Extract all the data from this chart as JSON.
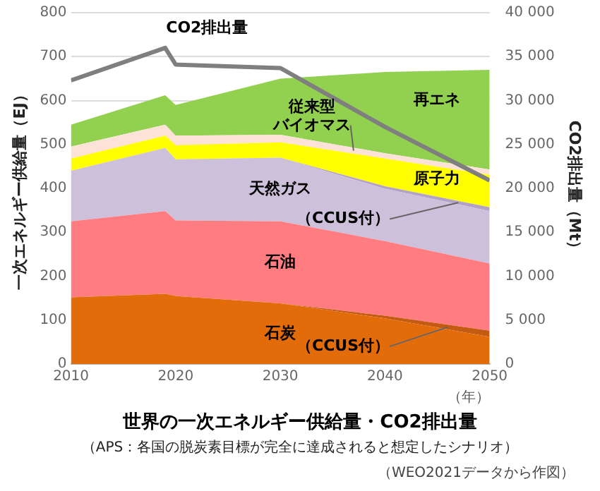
{
  "chart_data": {
    "type": "area",
    "title": "世界の一次エネルギー供給量・CO2排出量",
    "subtitle": "（APS：各国の脱炭素目標が完全に達成されると想定したシナリオ）",
    "xlabel": "（年）",
    "ylabel": "一次エネルギー供給量（EJ）",
    "y2label": "CO2排出量（Mt）",
    "annotations": [
      "（WEO2021データから作図）"
    ],
    "x": [
      2010,
      2019,
      2020,
      2030,
      2040,
      2050
    ],
    "stacked": true,
    "series": [
      {
        "name": "石炭",
        "color": "#e36c0a",
        "values": [
          152,
          160,
          155,
          138,
          104,
          62
        ]
      },
      {
        "name": "（CCUS付）",
        "color": "#c55a11",
        "values": [
          0,
          0,
          0,
          0,
          6,
          14
        ]
      },
      {
        "name": "石油",
        "color": "#ff7c80",
        "values": [
          173,
          188,
          172,
          187,
          170,
          153
        ]
      },
      {
        "name": "天然ガス",
        "color": "#ccc0da",
        "values": [
          115,
          144,
          139,
          145,
          119,
          119
        ]
      },
      {
        "name": "（CCUS付）",
        "color": "#b3a2c7",
        "values": [
          0,
          0,
          0,
          0,
          6,
          9
        ]
      },
      {
        "name": "原子力",
        "color": "#ffff00",
        "values": [
          28,
          28,
          32,
          35,
          63,
          74
        ]
      },
      {
        "name": "従来型バイオマス",
        "color": "#fde3d7",
        "values": [
          27,
          25,
          22,
          17,
          12,
          12
        ]
      },
      {
        "name": "再エネ",
        "color": "#92d050",
        "values": [
          50,
          67,
          70,
          128,
          185,
          227
        ]
      },
      {
        "name": "CO2排出量",
        "type": "line",
        "axis": "y2",
        "color": "#7f7f7f",
        "values": [
          32300,
          36000,
          34100,
          33700,
          27000,
          20900
        ]
      }
    ],
    "xlim": [
      2010,
      2050
    ],
    "xticks": [
      2010,
      2020,
      2030,
      2040,
      2050
    ],
    "ylim": [
      0,
      800
    ],
    "yticks": [
      0,
      100,
      200,
      300,
      400,
      500,
      600,
      700,
      800
    ],
    "y2lim": [
      0,
      40000
    ],
    "y2ticks": [
      0,
      {
        "value": 5000,
        "label": "5 000"
      },
      {
        "value": 10000,
        "label": "10 000"
      },
      {
        "value": 15000,
        "label": "15 000"
      },
      {
        "value": 20000,
        "label": "20 000"
      },
      {
        "value": 25000,
        "label": "25 000"
      },
      {
        "value": 30000,
        "label": "30 000"
      },
      {
        "value": 35000,
        "label": "35 000"
      },
      {
        "value": 40000,
        "label": "40 000"
      }
    ],
    "grid": "y",
    "legend": false,
    "marker": "none",
    "line_style": "solid"
  }
}
